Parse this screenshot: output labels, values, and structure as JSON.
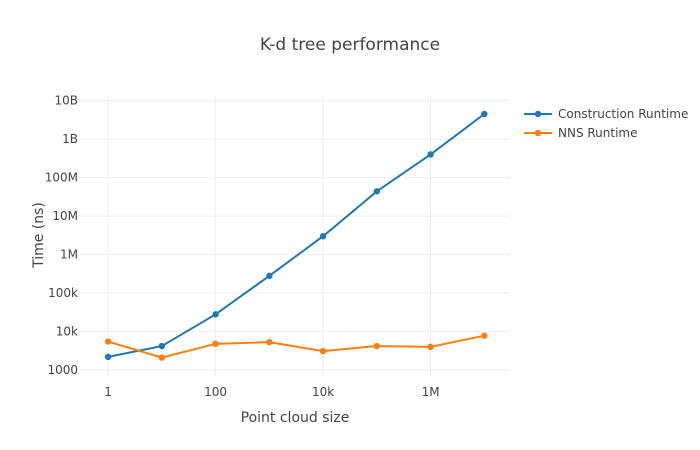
{
  "chart_data": {
    "type": "line",
    "title": "K-d tree performance",
    "xlabel": "Point cloud size",
    "ylabel": "Time (ns)",
    "x_scale": "log",
    "y_scale": "log",
    "xlim": [
      0.3,
      30000000
    ],
    "ylim": [
      700,
      14000000000
    ],
    "x_ticks": [
      {
        "value": 1,
        "label": "1"
      },
      {
        "value": 100,
        "label": "100"
      },
      {
        "value": 10000,
        "label": "10k"
      },
      {
        "value": 1000000,
        "label": "1M"
      }
    ],
    "y_ticks": [
      {
        "value": 1000,
        "label": "1000"
      },
      {
        "value": 10000,
        "label": "10k"
      },
      {
        "value": 100000,
        "label": "100k"
      },
      {
        "value": 1000000,
        "label": "1M"
      },
      {
        "value": 10000000,
        "label": "10M"
      },
      {
        "value": 100000000,
        "label": "100M"
      },
      {
        "value": 1000000000,
        "label": "1B"
      },
      {
        "value": 10000000000,
        "label": "10B"
      }
    ],
    "grid": true,
    "legend_position": "top-right",
    "x": [
      1,
      10,
      100,
      1000,
      10000,
      100000,
      1000000,
      10000000
    ],
    "series": [
      {
        "name": "Construction Runtime",
        "color": "#1f77b4",
        "values": [
          2200,
          4200,
          28000,
          280000,
          3000000,
          44000000,
          400000000,
          4500000000
        ]
      },
      {
        "name": "NNS Runtime",
        "color": "#ff7f0e",
        "values": [
          5500,
          2100,
          4800,
          5300,
          3100,
          4200,
          4000,
          7800
        ]
      }
    ]
  }
}
